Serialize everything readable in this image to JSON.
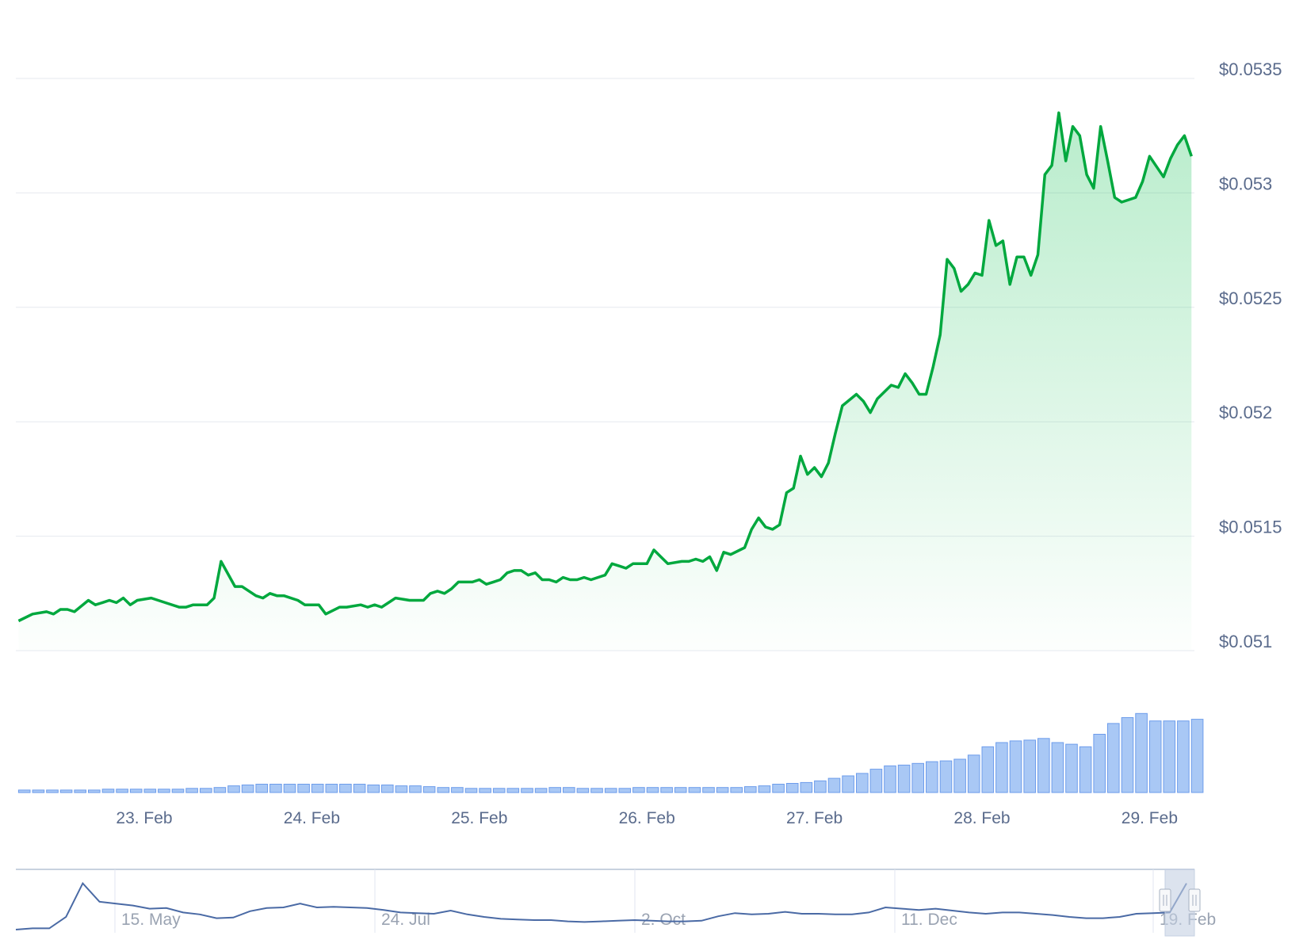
{
  "chart_data": {
    "type": "area",
    "title": "",
    "xlabel": "",
    "ylabel": "",
    "ylim": [
      0.051,
      0.0535
    ],
    "y_ticks": [
      "$0.051",
      "$0.0515",
      "$0.052",
      "$0.0525",
      "$0.053",
      "$0.0535"
    ],
    "y_tick_values": [
      0.051,
      0.0515,
      0.052,
      0.0525,
      0.053,
      0.0535
    ],
    "x_ticks": [
      "23. Feb",
      "24. Feb",
      "25. Feb",
      "26. Feb",
      "27. Feb",
      "28. Feb",
      "29. Feb"
    ],
    "grid": true,
    "legend": "none",
    "colors": {
      "line": "#00a83e",
      "area": "#22c55e",
      "volume": "#a9c8f5",
      "volume_stroke": "#6d9ceb",
      "navigator": "#4a6aa5",
      "text": "#5a6b8c"
    },
    "series": [
      {
        "x": [
          "22 Feb 06:00",
          "22 Feb 08:00",
          "22 Feb 10:00",
          "22 Feb 11:00",
          "22 Feb 12:00",
          "22 Feb 13:00",
          "22 Feb 14:00",
          "22 Feb 16:00",
          "22 Feb 17:00",
          "22 Feb 18:00",
          "22 Feb 19:00",
          "22 Feb 20:00",
          "22 Feb 21:00",
          "22 Feb 22:00",
          "22 Feb 23:00",
          "23 Feb 01:00",
          "23 Feb 03:00",
          "23 Feb 05:00",
          "23 Feb 06:00",
          "23 Feb 07:00",
          "23 Feb 09:00",
          "23 Feb 10:00",
          "23 Feb 11:00",
          "23 Feb 13:00",
          "23 Feb 14:00",
          "23 Feb 16:00",
          "23 Feb 17:00",
          "23 Feb 18:00",
          "23 Feb 19:00",
          "23 Feb 20:00",
          "23 Feb 22:00",
          "23 Feb 23:00",
          "24 Feb 01:00",
          "24 Feb 02:00",
          "24 Feb 04:00",
          "24 Feb 05:00",
          "24 Feb 07:00",
          "24 Feb 08:00",
          "24 Feb 09:00",
          "24 Feb 10:00",
          "24 Feb 11:00",
          "24 Feb 12:00",
          "24 Feb 14:00",
          "24 Feb 16:00",
          "24 Feb 17:00",
          "24 Feb 18:00",
          "24 Feb 19:00",
          "24 Feb 20:00",
          "24 Feb 21:00",
          "24 Feb 23:00",
          "25 Feb 00:00",
          "25 Feb 01:00",
          "25 Feb 02:00",
          "25 Feb 03:00",
          "25 Feb 04:00",
          "25 Feb 05:00",
          "25 Feb 06:00",
          "25 Feb 07:00",
          "25 Feb 08:00",
          "25 Feb 09:00",
          "25 Feb 10:00",
          "25 Feb 11:00",
          "25 Feb 12:00",
          "25 Feb 13:00",
          "25 Feb 14:00",
          "25 Feb 15:00",
          "25 Feb 16:00",
          "25 Feb 18:00",
          "25 Feb 19:00",
          "25 Feb 20:00",
          "25 Feb 21:00",
          "25 Feb 22:00",
          "26 Feb 00:00",
          "26 Feb 01:00",
          "26 Feb 02:00",
          "26 Feb 03:00",
          "26 Feb 05:00",
          "26 Feb 06:00",
          "26 Feb 07:00",
          "26 Feb 08:00",
          "26 Feb 09:00",
          "26 Feb 10:00",
          "26 Feb 11:00",
          "26 Feb 12:00",
          "26 Feb 14:00",
          "26 Feb 15:00",
          "26 Feb 16:00",
          "26 Feb 17:00",
          "26 Feb 18:00",
          "26 Feb 19:00",
          "26 Feb 20:00",
          "26 Feb 21:00",
          "26 Feb 22:00",
          "26 Feb 23:00",
          "27 Feb 00:00",
          "27 Feb 01:00",
          "27 Feb 02:00",
          "27 Feb 03:00",
          "27 Feb 04:00",
          "27 Feb 06:00",
          "27 Feb 07:00",
          "27 Feb 08:00",
          "27 Feb 09:00",
          "27 Feb 11:00",
          "27 Feb 12:00",
          "27 Feb 13:00",
          "27 Feb 14:00",
          "27 Feb 15:00",
          "27 Feb 16:00",
          "27 Feb 17:00",
          "27 Feb 18:00",
          "27 Feb 19:00",
          "27 Feb 20:00",
          "27 Feb 21:00",
          "27 Feb 22:00",
          "27 Feb 23:00",
          "28 Feb 00:00",
          "28 Feb 01:00",
          "28 Feb 02:00",
          "28 Feb 03:00",
          "28 Feb 04:00",
          "28 Feb 05:00",
          "28 Feb 06:00",
          "28 Feb 07:00",
          "28 Feb 08:00",
          "28 Feb 09:00",
          "28 Feb 10:00",
          "28 Feb 11:00",
          "28 Feb 12:00",
          "28 Feb 13:00",
          "28 Feb 14:00",
          "28 Feb 15:00",
          "28 Feb 16:00",
          "28 Feb 17:00",
          "28 Feb 18:00",
          "28 Feb 19:00",
          "28 Feb 20:00",
          "28 Feb 21:00",
          "28 Feb 22:00",
          "28 Feb 23:00",
          "29 Feb 00:00",
          "29 Feb 02:00",
          "29 Feb 03:00",
          "29 Feb 04:00",
          "29 Feb 05:00",
          "29 Feb 06:00"
        ],
        "y": [
          0.05113,
          0.05116,
          0.05117,
          0.05116,
          0.05118,
          0.05118,
          0.05117,
          0.05122,
          0.0512,
          0.05121,
          0.05122,
          0.05121,
          0.05123,
          0.0512,
          0.05122,
          0.05123,
          0.05121,
          0.05119,
          0.05119,
          0.0512,
          0.0512,
          0.05123,
          0.05139,
          0.05128,
          0.05128,
          0.05124,
          0.05123,
          0.05125,
          0.05124,
          0.05124,
          0.05122,
          0.0512,
          0.0512,
          0.05116,
          0.05119,
          0.05119,
          0.0512,
          0.05119,
          0.0512,
          0.05119,
          0.05121,
          0.05123,
          0.05122,
          0.05122,
          0.05125,
          0.05126,
          0.05125,
          0.05127,
          0.0513,
          0.0513,
          0.05131,
          0.05129,
          0.0513,
          0.05131,
          0.05134,
          0.05135,
          0.05135,
          0.05133,
          0.05134,
          0.05131,
          0.05131,
          0.0513,
          0.05132,
          0.05131,
          0.05131,
          0.05132,
          0.05131,
          0.05133,
          0.05138,
          0.05137,
          0.05136,
          0.05138,
          0.05138,
          0.05144,
          0.05141,
          0.05138,
          0.05139,
          0.05139,
          0.0514,
          0.05139,
          0.05141,
          0.05135,
          0.05143,
          0.05142,
          0.05145,
          0.05153,
          0.05158,
          0.05154,
          0.05153,
          0.05155,
          0.05169,
          0.05171,
          0.05185,
          0.05177,
          0.0518,
          0.05176,
          0.05182,
          0.05195,
          0.05207,
          0.05212,
          0.05209,
          0.05204,
          0.0521,
          0.05216,
          0.05215,
          0.05221,
          0.05217,
          0.05212,
          0.05212,
          0.05224,
          0.05238,
          0.05271,
          0.05267,
          0.05257,
          0.0526,
          0.05265,
          0.05264,
          0.05288,
          0.05277,
          0.05279,
          0.0526,
          0.05272,
          0.05272,
          0.05264,
          0.05273,
          0.05308,
          0.05312,
          0.05335,
          0.05314,
          0.05329,
          0.05325,
          0.05308,
          0.05302,
          0.05329,
          0.05314,
          0.05298,
          0.05296,
          0.05297,
          0.05298,
          0.05305,
          0.05316,
          0.05307,
          0.05315,
          0.05321,
          0.05325,
          0.05316
        ]
      }
    ],
    "volume": {
      "interval_hours": 2,
      "start": "22 Feb 06:00",
      "relative_values": [
        3,
        3,
        3,
        3,
        3,
        3,
        4,
        4,
        4,
        4,
        4,
        4,
        5,
        5,
        6,
        8,
        9,
        10,
        10,
        10,
        10,
        10,
        10,
        10,
        10,
        9,
        9,
        8,
        8,
        7,
        6,
        6,
        5,
        5,
        5,
        5,
        5,
        5,
        6,
        6,
        5,
        5,
        5,
        5,
        6,
        6,
        6,
        6,
        6,
        6,
        6,
        6,
        7,
        8,
        10,
        11,
        12,
        14,
        17,
        20,
        23,
        28,
        32,
        33,
        35,
        37,
        38,
        40,
        45,
        55,
        60,
        62,
        63,
        65,
        60,
        58,
        55,
        70,
        83,
        90,
        95,
        86,
        86,
        86,
        88
      ]
    },
    "navigator": {
      "x_ticks": [
        "15. May",
        "24. Jul",
        "2. Oct",
        "11. Dec",
        "19. Feb"
      ],
      "relative_values": [
        0.05,
        0.07,
        0.07,
        0.25,
        0.78,
        0.49,
        0.46,
        0.43,
        0.38,
        0.39,
        0.32,
        0.29,
        0.23,
        0.24,
        0.34,
        0.39,
        0.4,
        0.46,
        0.4,
        0.41,
        0.4,
        0.39,
        0.36,
        0.32,
        0.31,
        0.3,
        0.35,
        0.29,
        0.25,
        0.22,
        0.21,
        0.2,
        0.2,
        0.18,
        0.17,
        0.18,
        0.19,
        0.2,
        0.19,
        0.18,
        0.18,
        0.19,
        0.26,
        0.31,
        0.29,
        0.3,
        0.33,
        0.3,
        0.3,
        0.29,
        0.29,
        0.32,
        0.4,
        0.38,
        0.36,
        0.38,
        0.35,
        0.32,
        0.3,
        0.32,
        0.32,
        0.3,
        0.28,
        0.25,
        0.23,
        0.23,
        0.25,
        0.3,
        0.31,
        0.32,
        0.78
      ]
    }
  }
}
